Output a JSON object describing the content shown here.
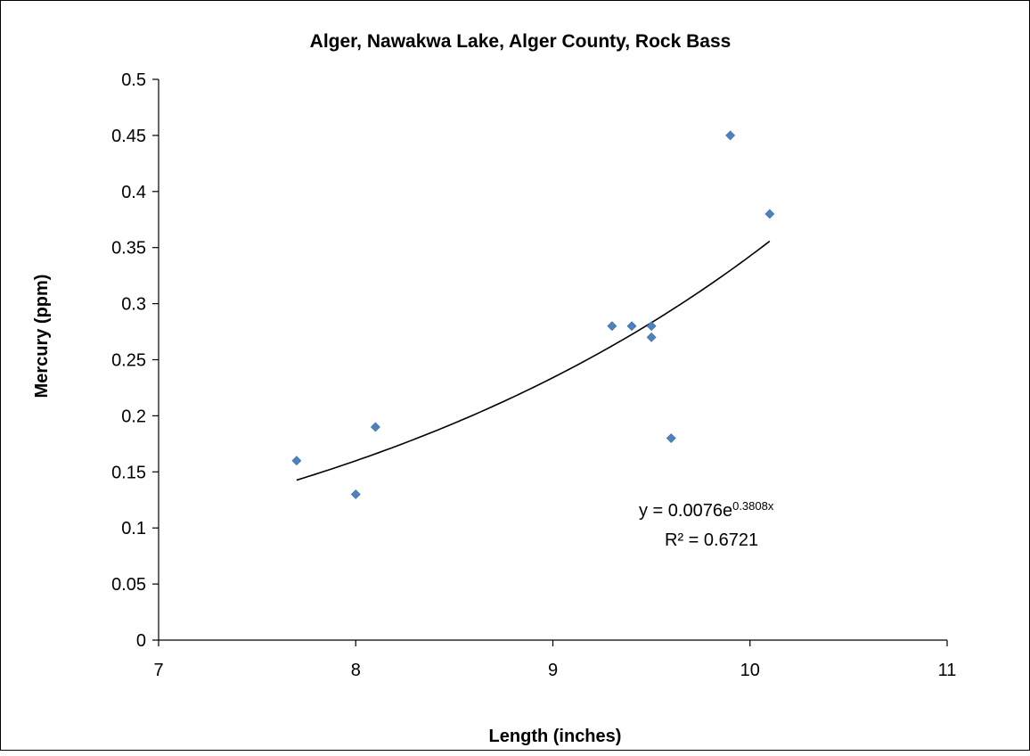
{
  "chart_data": {
    "type": "scatter",
    "title": "Alger, Nawakwa Lake, Alger County, Rock Bass",
    "xlabel": "Length (inches)",
    "ylabel": "Mercury (ppm)",
    "xlim": [
      7,
      11
    ],
    "ylim": [
      0,
      0.5
    ],
    "x_ticks": [
      7,
      8,
      9,
      10,
      11
    ],
    "y_ticks": [
      0,
      0.05,
      0.1,
      0.15,
      0.2,
      0.25,
      0.3,
      0.35,
      0.4,
      0.45,
      0.5
    ],
    "x_tick_labels": [
      "7",
      "8",
      "9",
      "10",
      "11"
    ],
    "y_tick_labels": [
      "0",
      "0.05",
      "0.1",
      "0.15",
      "0.2",
      "0.25",
      "0.3",
      "0.35",
      "0.4",
      "0.45",
      "0.5"
    ],
    "grid": false,
    "legend": "none",
    "marker": "diamond",
    "marker_color": "#4F81BD",
    "series": [
      {
        "points": [
          {
            "x": 7.7,
            "y": 0.16
          },
          {
            "x": 8.0,
            "y": 0.13
          },
          {
            "x": 8.1,
            "y": 0.19
          },
          {
            "x": 9.3,
            "y": 0.28
          },
          {
            "x": 9.4,
            "y": 0.28
          },
          {
            "x": 9.5,
            "y": 0.28
          },
          {
            "x": 9.5,
            "y": 0.27
          },
          {
            "x": 9.6,
            "y": 0.18
          },
          {
            "x": 9.9,
            "y": 0.45
          },
          {
            "x": 10.1,
            "y": 0.38
          }
        ]
      }
    ],
    "trendline": {
      "type": "exponential",
      "a": 0.0076,
      "b": 0.3808,
      "x_range": [
        7.7,
        10.1
      ],
      "color": "#000000",
      "equation_main": "y = 0.0076e",
      "equation_exponent": "0.3808x",
      "r_squared_label": "R² = 0.6721"
    }
  }
}
